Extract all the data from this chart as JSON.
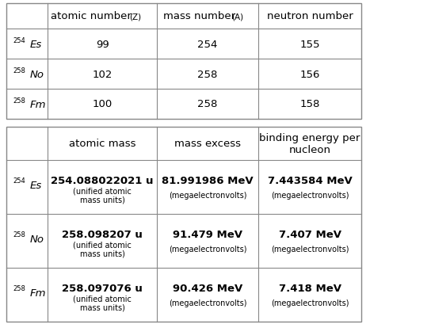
{
  "t1_headers": [
    "atomic number",
    "(Z)",
    "mass number",
    "(A)",
    "neutron number"
  ],
  "t1_rows": [
    {
      "sup": "254",
      "elem": "Es",
      "v": [
        "99",
        "254",
        "155"
      ]
    },
    {
      "sup": "258",
      "elem": "No",
      "v": [
        "102",
        "258",
        "156"
      ]
    },
    {
      "sup": "258",
      "elem": "Fm",
      "v": [
        "100",
        "258",
        "158"
      ]
    }
  ],
  "t2_headers": [
    "atomic mass",
    "mass excess",
    "binding energy per\nnucleon"
  ],
  "t2_rows": [
    {
      "sup": "254",
      "elem": "Es",
      "v1": "254.088022021 u",
      "v1s": "(unified atomic\nmass units)",
      "v2": "81.991986 MeV",
      "v2s": "(megaelectronvolts)",
      "v3": "7.443584 MeV",
      "v3s": "(megaelectronvolts)"
    },
    {
      "sup": "258",
      "elem": "No",
      "v1": "258.098207 u",
      "v1s": "(unified atomic\nmass units)",
      "v2": "91.479 MeV",
      "v2s": "(megaelectronvolts)",
      "v3": "7.407 MeV",
      "v3s": "(megaelectronvolts)"
    },
    {
      "sup": "258",
      "elem": "Fm",
      "v1": "258.097076 u",
      "v1s": "(unified atomic\nmass units)",
      "v2": "90.426 MeV",
      "v2s": "(megaelectronvolts)",
      "v3": "7.418 MeV",
      "v3s": "(megaelectronvolts)"
    }
  ],
  "bg": "#ffffff",
  "border": "#888888",
  "tc": "#000000",
  "fs_main": 9.5,
  "fs_small": 7.5,
  "fs_super": 6.0,
  "fs_cell": 9.5,
  "fs_cell_bold": 9.5
}
